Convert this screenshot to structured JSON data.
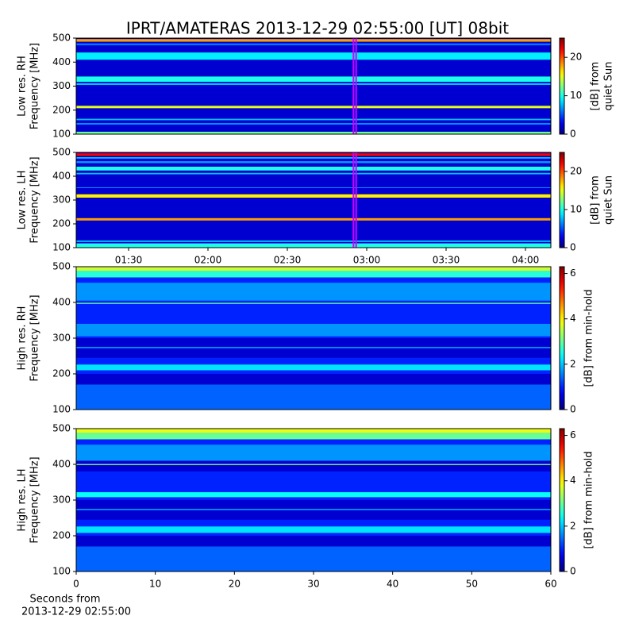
{
  "title": "IPRT/AMATERAS 2013-12-29 02:55:00 [UT]   08bit",
  "chart_data": [
    {
      "type": "spectrogram",
      "ylabel": [
        "Low res. RH",
        "Frequency [MHz]"
      ],
      "ylim": [
        100,
        500
      ],
      "yticks": [
        100,
        200,
        300,
        400,
        500
      ],
      "xlim": [
        70.2,
        249.6
      ],
      "markers": [
        175,
        176
      ],
      "marker_color": "#d000ff",
      "clim": [
        0,
        25
      ],
      "cticks": [
        0,
        10,
        20
      ],
      "clabel": [
        "[dB] from",
        "quiet Sun"
      ],
      "background": 2,
      "bands": [
        {
          "from": 100,
          "to": 110,
          "level": 12
        },
        {
          "from": 140,
          "to": 146,
          "level": 7
        },
        {
          "from": 158,
          "to": 164,
          "level": 8
        },
        {
          "from": 208,
          "to": 218,
          "level": 15
        },
        {
          "from": 305,
          "to": 312,
          "level": 8
        },
        {
          "from": 318,
          "to": 340,
          "level": 10
        },
        {
          "from": 410,
          "to": 440,
          "level": 9
        },
        {
          "from": 470,
          "to": 478,
          "level": 6
        },
        {
          "from": 485,
          "to": 496,
          "level": 18
        }
      ]
    },
    {
      "type": "spectrogram",
      "ylabel": [
        "Low res. LH",
        "Frequency [MHz]"
      ],
      "ylim": [
        100,
        500
      ],
      "yticks": [
        100,
        200,
        300,
        400,
        500
      ],
      "xlim": [
        70.2,
        249.6
      ],
      "xticks": [
        {
          "value": 90,
          "label": "01:30"
        },
        {
          "value": 120,
          "label": "02:00"
        },
        {
          "value": 150,
          "label": "02:30"
        },
        {
          "value": 180,
          "label": "03:00"
        },
        {
          "value": 210,
          "label": "03:30"
        },
        {
          "value": 240,
          "label": "04:00"
        }
      ],
      "markers": [
        175,
        176
      ],
      "marker_color": "#d000ff",
      "clim": [
        0,
        25
      ],
      "cticks": [
        0,
        10,
        20
      ],
      "clabel": [
        "[dB] from",
        "quiet Sun"
      ],
      "background": 2,
      "bands": [
        {
          "from": 100,
          "to": 118,
          "level": 10
        },
        {
          "from": 124,
          "to": 130,
          "level": 8
        },
        {
          "from": 214,
          "to": 224,
          "level": 18
        },
        {
          "from": 310,
          "to": 324,
          "level": 16
        },
        {
          "from": 350,
          "to": 353,
          "level": 7
        },
        {
          "from": 408,
          "to": 414,
          "level": 8
        },
        {
          "from": 424,
          "to": 440,
          "level": 10
        },
        {
          "from": 455,
          "to": 463,
          "level": 7
        },
        {
          "from": 474,
          "to": 480,
          "level": 8
        },
        {
          "from": 485,
          "to": 496,
          "level": 22
        }
      ]
    },
    {
      "type": "spectrogram",
      "ylabel": [
        "High res. RH",
        "Frequency [MHz]"
      ],
      "ylim": [
        100,
        500
      ],
      "yticks": [
        100,
        200,
        300,
        400,
        500
      ],
      "clim": [
        0,
        6.3
      ],
      "cticks": [
        0,
        2,
        4,
        6
      ],
      "clabel": [
        "[dB] from min-hold"
      ],
      "background": 1,
      "bands": [
        {
          "from": 100,
          "to": 170,
          "level": 1.4
        },
        {
          "from": 170,
          "to": 200,
          "level": 0.5
        },
        {
          "from": 210,
          "to": 226,
          "level": 2.2
        },
        {
          "from": 245,
          "to": 300,
          "level": 0.5
        },
        {
          "from": 272,
          "to": 275,
          "level": 2
        },
        {
          "from": 305,
          "to": 340,
          "level": 1.7
        },
        {
          "from": 396,
          "to": 399,
          "level": 3
        },
        {
          "from": 405,
          "to": 455,
          "level": 1.7
        },
        {
          "from": 470,
          "to": 488,
          "level": 2.6
        },
        {
          "from": 488,
          "to": 500,
          "level": 3.6
        }
      ]
    },
    {
      "type": "spectrogram",
      "ylabel": [
        "High res. LH",
        "Frequency [MHz]"
      ],
      "ylim": [
        100,
        500
      ],
      "yticks": [
        100,
        200,
        300,
        400,
        500
      ],
      "xlim": [
        0,
        60
      ],
      "xticks": [
        0,
        10,
        20,
        30,
        40,
        50,
        60
      ],
      "xlabel": [
        "Seconds from",
        "2013-12-29 02:55:00"
      ],
      "clim": [
        0,
        6.3
      ],
      "cticks": [
        0,
        2,
        4,
        6
      ],
      "clabel": [
        "[dB] from min-hold"
      ],
      "background": 1,
      "bands": [
        {
          "from": 100,
          "to": 170,
          "level": 1.4
        },
        {
          "from": 170,
          "to": 200,
          "level": 0.5
        },
        {
          "from": 208,
          "to": 226,
          "level": 2.2
        },
        {
          "from": 245,
          "to": 300,
          "level": 0.5
        },
        {
          "from": 272,
          "to": 275,
          "level": 2
        },
        {
          "from": 308,
          "to": 322,
          "level": 2.4
        },
        {
          "from": 380,
          "to": 410,
          "level": 0.5
        },
        {
          "from": 398,
          "to": 401,
          "level": 3.2
        },
        {
          "from": 410,
          "to": 455,
          "level": 1.7
        },
        {
          "from": 470,
          "to": 488,
          "level": 3
        },
        {
          "from": 488,
          "to": 500,
          "level": 3.8
        }
      ]
    }
  ]
}
